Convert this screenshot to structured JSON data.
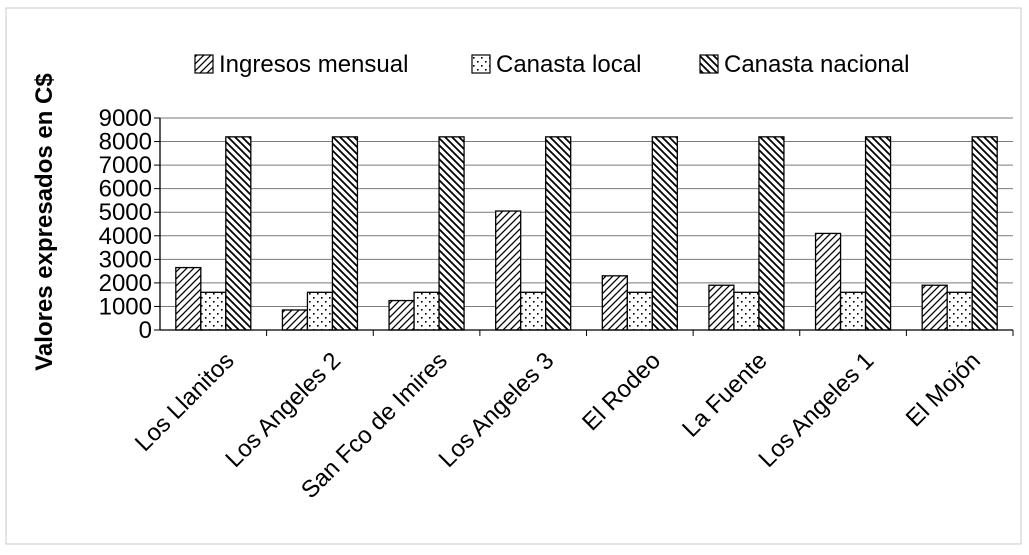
{
  "chart_data": {
    "type": "bar",
    "categories": [
      "Los Llanitos",
      "Los Angeles 2",
      "San Fco de Imires",
      "Los Angeles 3",
      "El Rodeo",
      "La Fuente",
      "Los Angeles 1",
      "El Mojón"
    ],
    "series": [
      {
        "name": "Ingresos mensual",
        "values": [
          2650,
          850,
          1250,
          5050,
          2300,
          1900,
          4100,
          1900
        ]
      },
      {
        "name": "Canasta local",
        "values": [
          1600,
          1600,
          1600,
          1600,
          1600,
          1600,
          1600,
          1600
        ]
      },
      {
        "name": "Canasta nacional",
        "values": [
          8200,
          8200,
          8200,
          8200,
          8200,
          8200,
          8200,
          8200
        ]
      }
    ],
    "ylabel": "Valores expresados en C$",
    "xlabel": "",
    "ylim": [
      0,
      9000
    ],
    "yticks": [
      "0",
      "1000",
      "2000",
      "3000",
      "4000",
      "5000",
      "6000",
      "7000",
      "8000",
      "9000"
    ],
    "grid": true,
    "legend_position": "top"
  }
}
